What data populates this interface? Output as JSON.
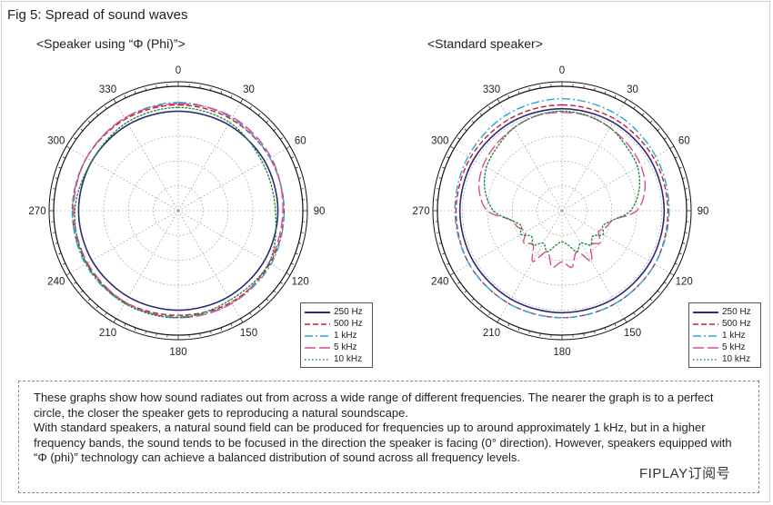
{
  "figure_title": "Fig 5: Spread of sound waves",
  "caption": [
    "These graphs show how sound radiates out from across a wide range of different frequencies. The nearer the graph is to a perfect circle, the closer the speaker gets to reproducing a natural soundscape.",
    "With standard speakers, a natural sound field can be produced for frequencies up to around approximately 1 kHz, but in a higher frequency bands, the sound tends to be focused in the direction the speaker is facing (0° direction). However, speakers equipped with “Φ (phi)” technology can achieve a balanced distribution of sound across all frequency levels."
  ],
  "watermark": "FIPLAY订阅号",
  "chart_data": [
    {
      "type": "polar-line",
      "title": "<Speaker using “Φ (Phi)”>",
      "angle_ticks": [
        "0",
        "30",
        "60",
        "90",
        "120",
        "150",
        "180",
        "210",
        "240",
        "270",
        "300",
        "330"
      ],
      "angle_direction": "clockwise, 0 at top",
      "grid": true,
      "legend_position": "bottom-right",
      "series": [
        {
          "name": "250 Hz",
          "color": "#2e2a78",
          "dash": "solid",
          "angles": [
            0,
            30,
            60,
            90,
            120,
            150,
            180,
            210,
            240,
            270,
            300,
            330
          ],
          "r": [
            0.8,
            0.8,
            0.8,
            0.8,
            0.8,
            0.8,
            0.8,
            0.8,
            0.8,
            0.8,
            0.8,
            0.8
          ]
        },
        {
          "name": "500 Hz",
          "color": "#c0222a",
          "dash": "dash",
          "angles": [
            0,
            30,
            60,
            90,
            120,
            150,
            180,
            210,
            240,
            270,
            300,
            330
          ],
          "r": [
            0.85,
            0.85,
            0.85,
            0.85,
            0.85,
            0.85,
            0.84,
            0.85,
            0.85,
            0.85,
            0.85,
            0.85
          ]
        },
        {
          "name": "1 kHz",
          "color": "#2aa6d8",
          "dash": "dashdot",
          "angles": [
            0,
            30,
            60,
            90,
            120,
            150,
            180,
            210,
            240,
            270,
            300,
            330
          ],
          "r": [
            0.87,
            0.86,
            0.85,
            0.85,
            0.86,
            0.86,
            0.85,
            0.86,
            0.86,
            0.85,
            0.85,
            0.86
          ]
        },
        {
          "name": "5 kHz",
          "color": "#d94c8c",
          "dash": "longdash",
          "angles": [
            0,
            30,
            60,
            90,
            120,
            150,
            180,
            210,
            240,
            270,
            300,
            330
          ],
          "r": [
            0.86,
            0.87,
            0.86,
            0.84,
            0.84,
            0.86,
            0.86,
            0.85,
            0.84,
            0.84,
            0.85,
            0.86
          ]
        },
        {
          "name": "10 kHz",
          "color": "#1f8b3a",
          "dash": "dot",
          "angles": [
            0,
            30,
            60,
            90,
            120,
            150,
            180,
            210,
            240,
            270,
            300,
            330
          ],
          "r": [
            0.83,
            0.82,
            0.78,
            0.78,
            0.84,
            0.83,
            0.86,
            0.86,
            0.85,
            0.83,
            0.8,
            0.82
          ]
        }
      ]
    },
    {
      "type": "polar-line",
      "title": "<Standard speaker>",
      "angle_ticks": [
        "0",
        "30",
        "60",
        "90",
        "120",
        "150",
        "180",
        "210",
        "240",
        "270",
        "300",
        "330"
      ],
      "angle_direction": "clockwise, 0 at top",
      "grid": true,
      "legend_position": "bottom-right",
      "series": [
        {
          "name": "250 Hz",
          "color": "#2e2a78",
          "dash": "solid",
          "angles": [
            0,
            30,
            60,
            90,
            120,
            150,
            180,
            210,
            240,
            270,
            300,
            330
          ],
          "r": [
            0.82,
            0.82,
            0.82,
            0.82,
            0.82,
            0.82,
            0.82,
            0.82,
            0.82,
            0.82,
            0.82,
            0.82
          ]
        },
        {
          "name": "500 Hz",
          "color": "#c0222a",
          "dash": "dash",
          "angles": [
            0,
            30,
            60,
            90,
            120,
            150,
            180,
            210,
            240,
            270,
            300,
            330
          ],
          "r": [
            0.85,
            0.85,
            0.85,
            0.85,
            0.86,
            0.86,
            0.86,
            0.86,
            0.86,
            0.85,
            0.85,
            0.85
          ]
        },
        {
          "name": "1 kHz",
          "color": "#2aa6d8",
          "dash": "dashdot",
          "angles": [
            0,
            30,
            60,
            90,
            120,
            150,
            180,
            210,
            240,
            270,
            300,
            330
          ],
          "r": [
            0.9,
            0.89,
            0.87,
            0.86,
            0.86,
            0.86,
            0.86,
            0.86,
            0.86,
            0.86,
            0.87,
            0.89
          ]
        },
        {
          "name": "5 kHz",
          "color": "#d94c8c",
          "dash": "longdash",
          "angles": [
            0,
            15,
            30,
            45,
            60,
            75,
            90,
            100,
            110,
            120,
            130,
            140,
            150,
            160,
            170,
            180,
            190,
            200,
            210,
            220,
            230,
            240,
            250,
            260,
            270,
            285,
            300,
            315,
            330,
            345
          ],
          "r": [
            0.79,
            0.79,
            0.77,
            0.75,
            0.73,
            0.69,
            0.6,
            0.42,
            0.38,
            0.34,
            0.4,
            0.36,
            0.47,
            0.35,
            0.46,
            0.41,
            0.46,
            0.35,
            0.47,
            0.36,
            0.4,
            0.34,
            0.38,
            0.42,
            0.6,
            0.69,
            0.73,
            0.75,
            0.77,
            0.79
          ]
        },
        {
          "name": "10 kHz",
          "color": "#1f8b3a",
          "dash": "dot",
          "angles": [
            0,
            15,
            30,
            45,
            60,
            75,
            90,
            100,
            110,
            120,
            130,
            140,
            150,
            160,
            170,
            180,
            190,
            200,
            210,
            220,
            230,
            240,
            250,
            260,
            270,
            285,
            300,
            315,
            330,
            345
          ],
          "r": [
            0.8,
            0.79,
            0.77,
            0.73,
            0.7,
            0.64,
            0.55,
            0.42,
            0.35,
            0.38,
            0.32,
            0.36,
            0.3,
            0.35,
            0.28,
            0.25,
            0.28,
            0.35,
            0.3,
            0.36,
            0.32,
            0.38,
            0.35,
            0.42,
            0.55,
            0.64,
            0.7,
            0.73,
            0.77,
            0.79
          ]
        }
      ]
    }
  ]
}
